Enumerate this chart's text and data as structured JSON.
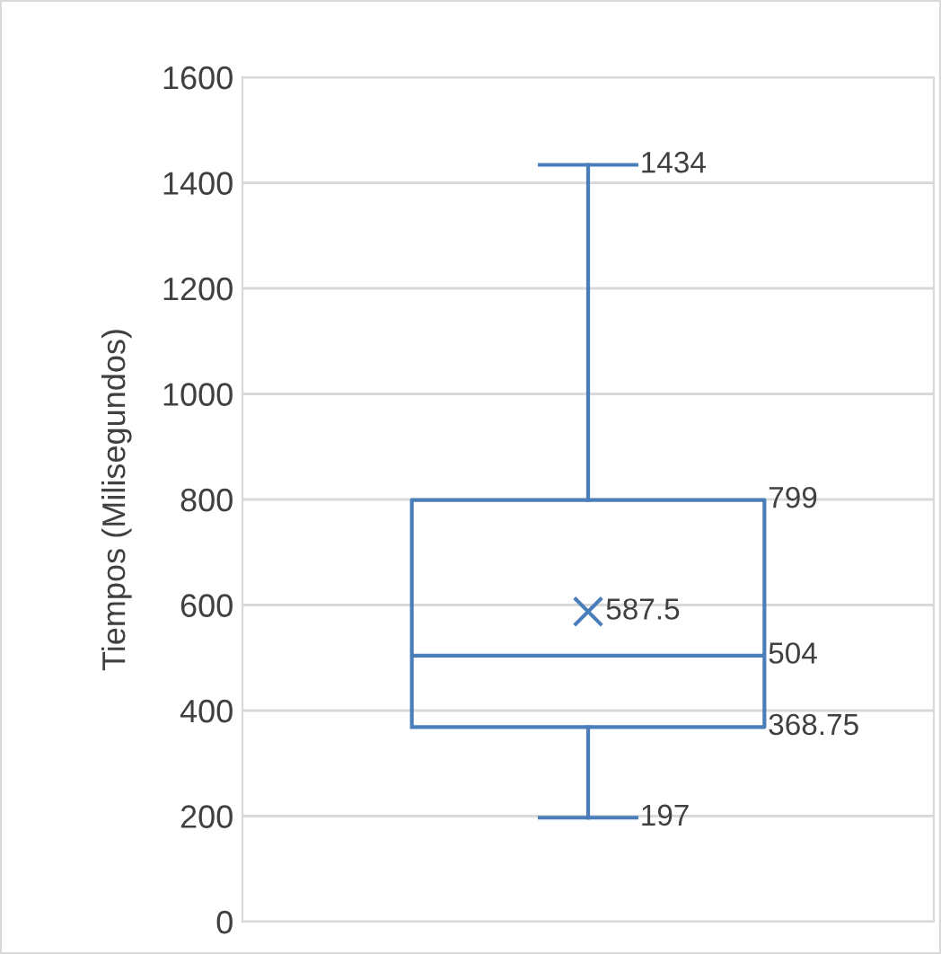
{
  "chart_data": {
    "type": "box",
    "ylabel": "Tiempos (Milisegundos)",
    "categories": [
      null
    ],
    "boxes": [
      {
        "low": 197,
        "q1": 368.75,
        "median": 504,
        "q3": 799,
        "high": 1434,
        "mean": 587.5
      }
    ],
    "color": "#4a7ebb",
    "ylim": [
      0,
      1600
    ],
    "yticks": [
      0,
      200,
      400,
      600,
      800,
      1000,
      1200,
      1400,
      1600
    ],
    "grid": "y",
    "marker": "cross",
    "annotations": [
      "1434",
      "799",
      "587.5",
      "504",
      "368.75",
      "197"
    ]
  }
}
